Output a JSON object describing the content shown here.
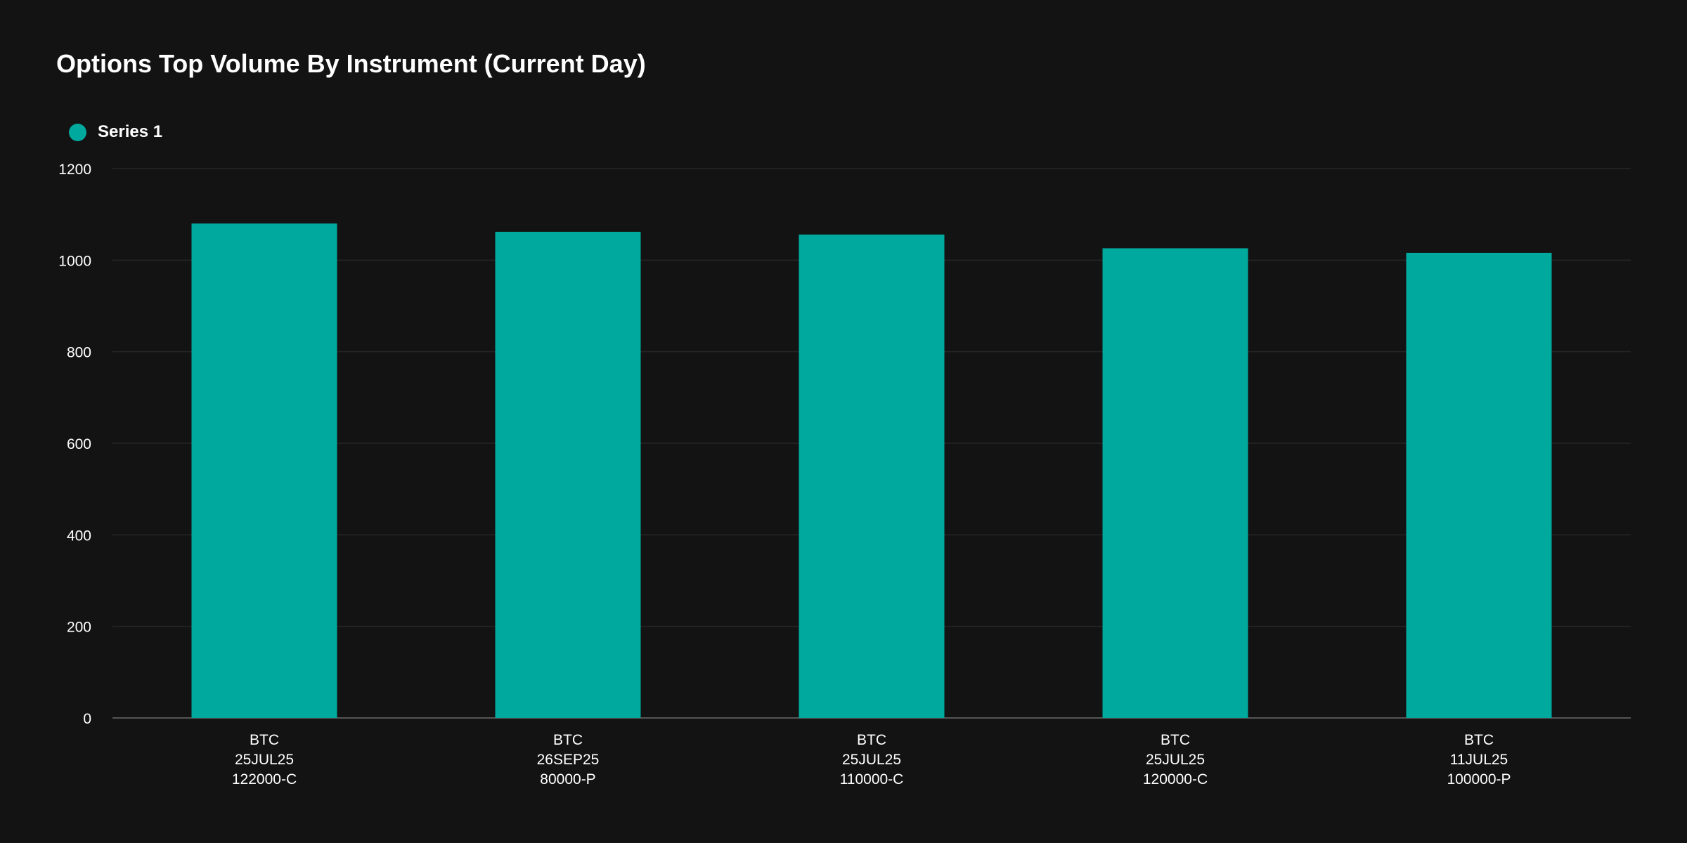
{
  "title": "Options Top Volume By Instrument (Current Day)",
  "colors": {
    "background": "#131313",
    "bar": "#00a99d",
    "grid": "#262626",
    "axis": "#555555",
    "text": "#ffffff"
  },
  "chart_data": {
    "type": "bar",
    "title": "Options Top Volume By Instrument (Current Day)",
    "categories": [
      [
        "BTC",
        "25JUL25",
        "122000-C"
      ],
      [
        "BTC",
        "26SEP25",
        "80000-P"
      ],
      [
        "BTC",
        "25JUL25",
        "110000-C"
      ],
      [
        "BTC",
        "25JUL25",
        "120000-C"
      ],
      [
        "BTC",
        "11JUL25",
        "100000-P"
      ]
    ],
    "series": [
      {
        "name": "Series 1",
        "values": [
          1080,
          1062,
          1056,
          1026,
          1016
        ]
      }
    ],
    "ylim": [
      0,
      1200
    ],
    "yticks": [
      0,
      200,
      400,
      600,
      800,
      1000,
      1200
    ],
    "xlabel": "",
    "ylabel": "",
    "grid": true,
    "legend_position": "top-left"
  }
}
